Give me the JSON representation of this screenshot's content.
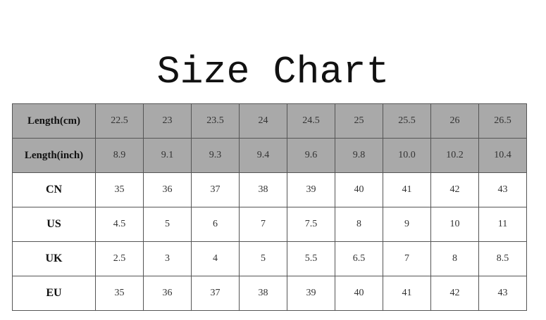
{
  "title": "Size Chart",
  "colors": {
    "header_bg": "#a9a9a9",
    "body_bg": "#ffffff",
    "border": "#555555"
  },
  "rows": [
    {
      "label": "Length(cm)",
      "shaded": true,
      "values": [
        "22.5",
        "23",
        "23.5",
        "24",
        "24.5",
        "25",
        "25.5",
        "26",
        "26.5"
      ]
    },
    {
      "label": "Length(inch)",
      "shaded": true,
      "values": [
        "8.9",
        "9.1",
        "9.3",
        "9.4",
        "9.6",
        "9.8",
        "10.0",
        "10.2",
        "10.4"
      ]
    },
    {
      "label": "CN",
      "shaded": false,
      "values": [
        "35",
        "36",
        "37",
        "38",
        "39",
        "40",
        "41",
        "42",
        "43"
      ]
    },
    {
      "label": "US",
      "shaded": false,
      "values": [
        "4.5",
        "5",
        "6",
        "7",
        "7.5",
        "8",
        "9",
        "10",
        "11"
      ]
    },
    {
      "label": "UK",
      "shaded": false,
      "values": [
        "2.5",
        "3",
        "4",
        "5",
        "5.5",
        "6.5",
        "7",
        "8",
        "8.5"
      ]
    },
    {
      "label": "EU",
      "shaded": false,
      "values": [
        "35",
        "36",
        "37",
        "38",
        "39",
        "40",
        "41",
        "42",
        "43"
      ]
    }
  ]
}
